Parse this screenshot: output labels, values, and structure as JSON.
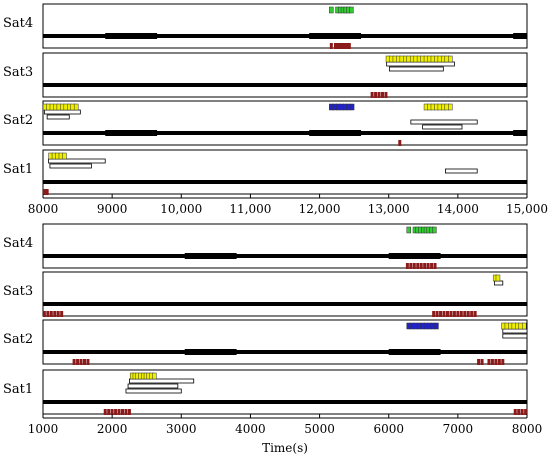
{
  "chart_data": [
    {
      "type": "timeline",
      "xlim": [
        8000,
        15000
      ],
      "xticks": [
        8000,
        9000,
        10000,
        11000,
        12000,
        13000,
        14000,
        15000
      ],
      "xtick_labels": [
        "8000",
        "9000",
        "10,000",
        "11,000",
        "12,000",
        "13,000",
        "14,000",
        "15,000"
      ],
      "xlabel": "",
      "rows": [
        {
          "name": "Sat4",
          "bold_line": [
            [
              8900,
              9650
            ],
            [
              11850,
              12600
            ],
            [
              14800,
              15000
            ]
          ],
          "markers": [
            {
              "color": "#33cc33",
              "x": [
                12170,
                12260,
                12300,
                12340,
                12380,
                12420,
                12460
              ]
            }
          ],
          "outline_bars": [],
          "ticks": [
            12170,
            12230,
            12270,
            12310,
            12350,
            12390,
            12430
          ]
        },
        {
          "name": "Sat3",
          "bold_line": [],
          "markers": [
            {
              "color": "#eeee00",
              "x": [
                12990,
                13040,
                13090,
                13140,
                13190,
                13240,
                13290,
                13340,
                13390,
                13440,
                13490,
                13540,
                13590,
                13640,
                13690,
                13740,
                13790,
                13840,
                13890
              ]
            }
          ],
          "outline_bars": [
            [
              12970,
              13950
            ],
            [
              13010,
              13790
            ]
          ],
          "ticks": [
            12760,
            12810,
            12860,
            12910,
            12960
          ]
        },
        {
          "name": "Sat2",
          "bold_line": [
            [
              8900,
              9650
            ],
            [
              11850,
              12600
            ],
            [
              14800,
              15000
            ]
          ],
          "markers": [
            {
              "color": "#eeee00",
              "x": [
                8030,
                8080,
                8130,
                8180,
                8230,
                8280,
                8330,
                8380,
                8430,
                8480
              ]
            },
            {
              "color": "#eeee00",
              "x": [
                13540,
                13590,
                13640,
                13690,
                13740,
                13790,
                13840,
                13890
              ]
            },
            {
              "color": "#2222cc",
              "x": [
                12170,
                12220,
                12270,
                12320,
                12370,
                12420,
                12470
              ]
            }
          ],
          "outline_bars": [
            [
              8020,
              8540
            ],
            [
              8060,
              8380
            ],
            [
              13320,
              14280
            ],
            [
              13490,
              14060
            ]
          ],
          "ticks": [
            13160
          ]
        },
        {
          "name": "Sat1",
          "bold_line": [],
          "markers": [
            {
              "color": "#eeee00",
              "x": [
                8110,
                8160,
                8210,
                8260,
                8310
              ]
            }
          ],
          "outline_bars": [
            [
              8080,
              8900
            ],
            [
              8100,
              8700
            ],
            [
              13820,
              14280
            ]
          ],
          "ticks": [
            8020,
            8060
          ]
        }
      ]
    },
    {
      "type": "timeline",
      "xlim": [
        1000,
        8000
      ],
      "xticks": [
        1000,
        2000,
        3000,
        4000,
        5000,
        6000,
        7000,
        8000
      ],
      "xtick_labels": [
        "1000",
        "2000",
        "3000",
        "4000",
        "5000",
        "6000",
        "7000",
        "8000"
      ],
      "xlabel": "Time(s)",
      "rows": [
        {
          "name": "Sat4",
          "bold_line": [
            [
              3050,
              3800
            ],
            [
              6000,
              6750
            ]
          ],
          "markers": [
            {
              "color": "#33cc33",
              "x": [
                6290,
                6380,
                6420,
                6460,
                6500,
                6540,
                6580,
                6620,
                6660
              ]
            }
          ],
          "outline_bars": [],
          "ticks": [
            6270,
            6320,
            6370,
            6420,
            6470,
            6520,
            6570,
            6620,
            6670
          ]
        },
        {
          "name": "Sat3",
          "bold_line": [],
          "markers": [
            {
              "color": "#eeee00",
              "x": [
                7540,
                7580
              ]
            }
          ],
          "outline_bars": [
            [
              7530,
              7650
            ]
          ],
          "ticks": [
            1020,
            1070,
            1120,
            1170,
            1220,
            1270,
            6650,
            6700,
            6750,
            6800,
            6850,
            6900,
            6950,
            7000,
            7050,
            7100,
            7150,
            7200,
            7250
          ]
        },
        {
          "name": "Sat2",
          "bold_line": [
            [
              3050,
              3800
            ],
            [
              6000,
              6750
            ]
          ],
          "markers": [
            {
              "color": "#2222cc",
              "x": [
                6290,
                6340,
                6390,
                6440,
                6490,
                6540,
                6590,
                6640,
                6690
              ]
            },
            {
              "color": "#eeee00",
              "x": [
                7660,
                7710,
                7760,
                7810,
                7860,
                7910,
                7960
              ]
            }
          ],
          "outline_bars": [
            [
              7650,
              8000
            ],
            [
              7650,
              8000
            ]
          ],
          "ticks": [
            1450,
            1500,
            1550,
            1600,
            1650,
            7300,
            7350,
            7450,
            7500,
            7550,
            7600,
            7650
          ]
        },
        {
          "name": "Sat1",
          "bold_line": [],
          "markers": [
            {
              "color": "#eeee00",
              "x": [
                2290,
                2330,
                2370,
                2410,
                2450,
                2490,
                2530,
                2570,
                2610
              ]
            }
          ],
          "outline_bars": [
            [
              2250,
              3180
            ],
            [
              2230,
              2950
            ],
            [
              2200,
              3000
            ]
          ],
          "ticks": [
            1900,
            1950,
            2000,
            2050,
            2100,
            2150,
            2200,
            2250,
            7830,
            7880,
            7930,
            7980
          ]
        }
      ]
    }
  ]
}
